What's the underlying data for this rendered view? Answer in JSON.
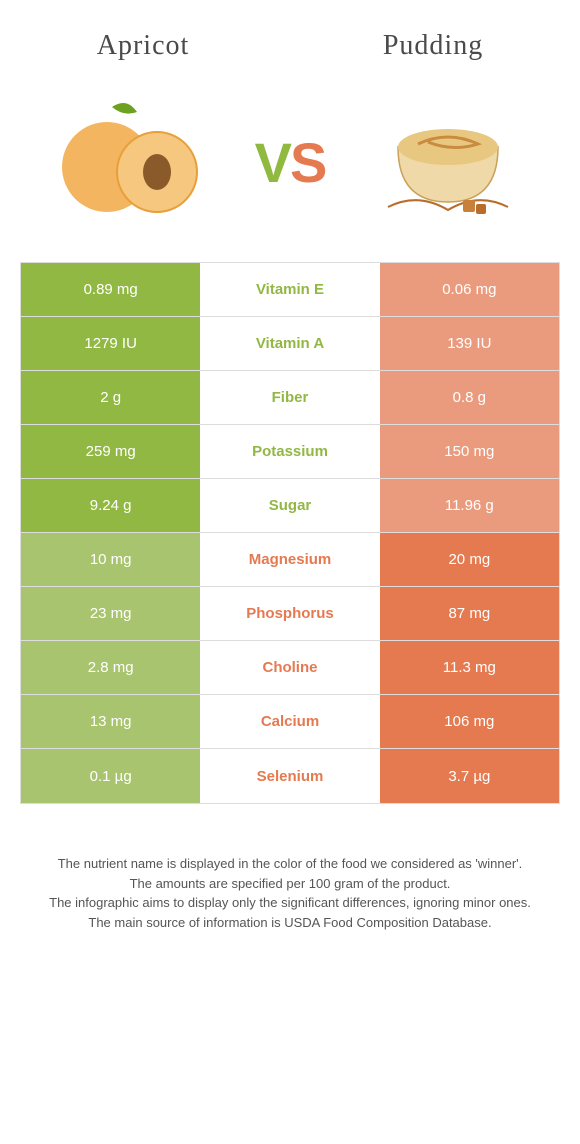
{
  "colors": {
    "green": "#92b844",
    "green_muted": "#a9c46e",
    "orange": "#e57a51",
    "orange_muted": "#eb9b7d"
  },
  "header": {
    "left_title": "Apricot",
    "right_title": "Pudding",
    "vs_v": "V",
    "vs_s": "S"
  },
  "rows": [
    {
      "left": "0.89 mg",
      "mid": "Vitamin E",
      "right": "0.06 mg",
      "winner": "left"
    },
    {
      "left": "1279 IU",
      "mid": "Vitamin A",
      "right": "139 IU",
      "winner": "left"
    },
    {
      "left": "2 g",
      "mid": "Fiber",
      "right": "0.8 g",
      "winner": "left"
    },
    {
      "left": "259 mg",
      "mid": "Potassium",
      "right": "150 mg",
      "winner": "left"
    },
    {
      "left": "9.24 g",
      "mid": "Sugar",
      "right": "11.96 g",
      "winner": "left"
    },
    {
      "left": "10 mg",
      "mid": "Magnesium",
      "right": "20 mg",
      "winner": "right"
    },
    {
      "left": "23 mg",
      "mid": "Phosphorus",
      "right": "87 mg",
      "winner": "right"
    },
    {
      "left": "2.8 mg",
      "mid": "Choline",
      "right": "11.3 mg",
      "winner": "right"
    },
    {
      "left": "13 mg",
      "mid": "Calcium",
      "right": "106 mg",
      "winner": "right"
    },
    {
      "left": "0.1 µg",
      "mid": "Selenium",
      "right": "3.7 µg",
      "winner": "right"
    }
  ],
  "footer": {
    "line1": "The nutrient name is displayed in the color of the food we considered as 'winner'.",
    "line2": "The amounts are specified per 100 gram of the product.",
    "line3": "The infographic aims to display only the significant differences, ignoring minor ones.",
    "line4": "The main source of information is USDA Food Composition Database."
  }
}
